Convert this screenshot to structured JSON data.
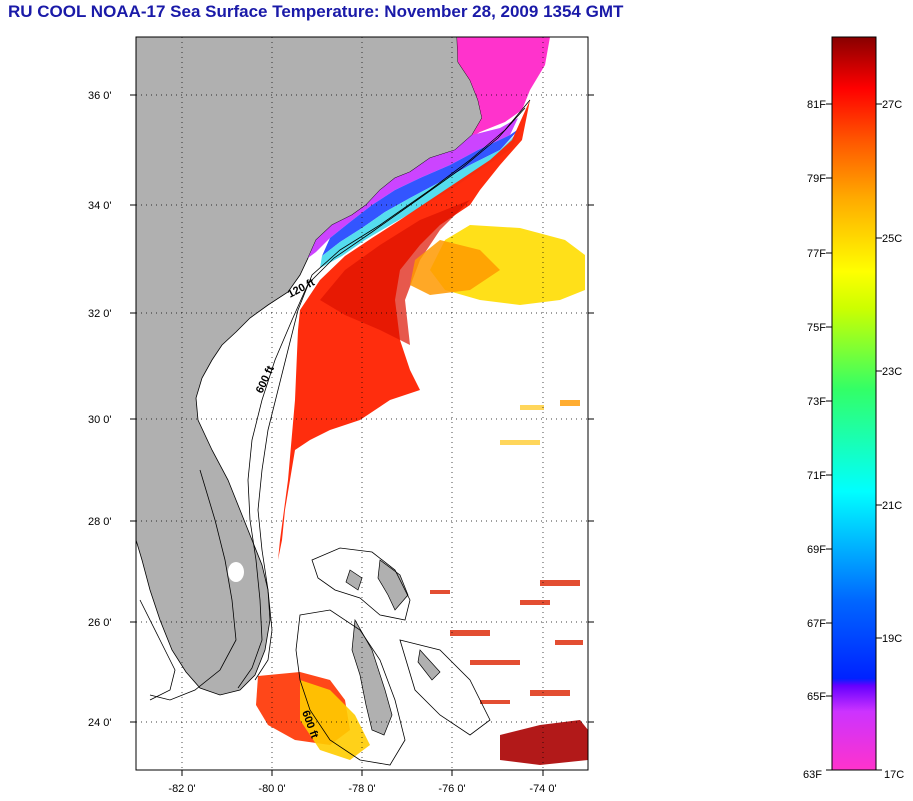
{
  "title": "RU COOL  NOAA-17  Sea Surface Temperature:  November 28, 2009 1354 GMT",
  "map": {
    "lat_labels": [
      "36 0'",
      "34 0'",
      "32 0'",
      "30 0'",
      "28 0'",
      "26 0'",
      "24 0'"
    ],
    "lon_labels": [
      "-82 0'",
      "-80 0'",
      "-78 0'",
      "-76 0'",
      "-74 0'"
    ],
    "isobaths": [
      "120 ft",
      "600 ft",
      "600 ft"
    ],
    "colors": {
      "land": "#b0b0b0",
      "ocean": "#ffffff",
      "coast": "#000000"
    }
  },
  "colorbar": {
    "fahrenheit_labels": [
      "81F",
      "79F",
      "77F",
      "75F",
      "73F",
      "71F",
      "69F",
      "67F",
      "65F",
      "63F"
    ],
    "celsius_labels": [
      "27C",
      "25C",
      "23C",
      "21C",
      "19C",
      "17C"
    ]
  }
}
